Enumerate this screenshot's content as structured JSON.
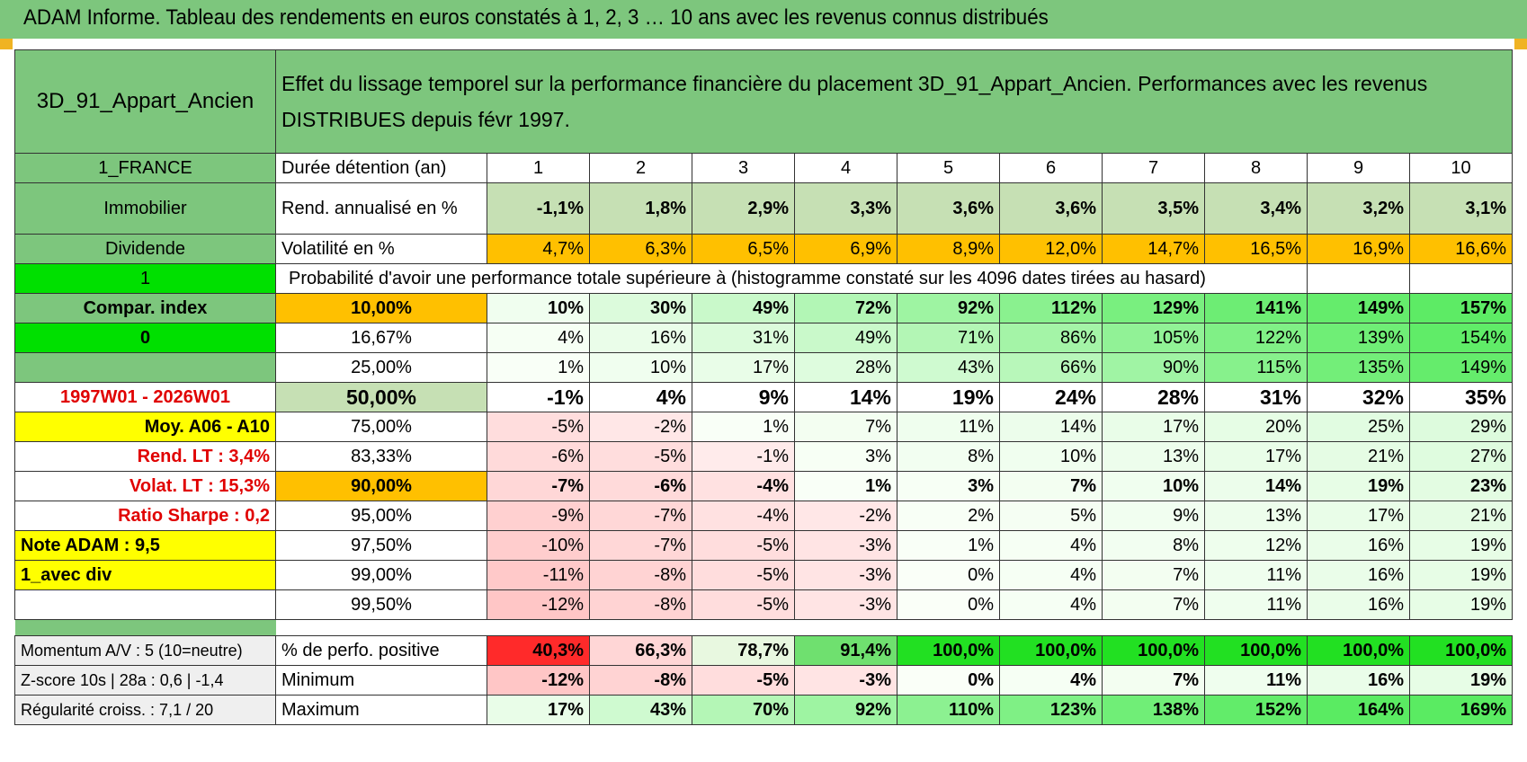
{
  "banner": "ADAM Informe. Tableau des rendements en euros constatés à 1, 2, 3 … 10 ans avec les revenus connus distribués",
  "colors": {
    "green": "#7dc67d",
    "orange": "#ffc000",
    "bright_green": "#00e000",
    "yellow": "#ffff00",
    "red_text": "#e00000"
  },
  "asset": "3D_91_Appart_Ancien",
  "description": "Effet du lissage temporel sur la performance financière du placement 3D_91_Appart_Ancien. Performances avec les revenus DISTRIBUES depuis févr 1997.",
  "side": {
    "country": "1_FRANCE",
    "category": "Immobilier",
    "income": "Dividende",
    "flag1": "1",
    "compar": "Compar. index",
    "flag0": "0",
    "period": "1997W01 - 2026W01",
    "moy": "Moy. A06 - A10",
    "rend_lt": "Rend. LT :   3,4%",
    "volat_lt": "Volat. LT :   15,3%",
    "sharpe": "Ratio Sharpe :    0,2",
    "note": "Note ADAM : 9,5",
    "avec_div": "1_avec div"
  },
  "header": {
    "label": "Durée détention (an)",
    "years": [
      "1",
      "2",
      "3",
      "4",
      "5",
      "6",
      "7",
      "8",
      "9",
      "10"
    ]
  },
  "rend": {
    "label": "Rend. annualisé en %",
    "values": [
      "-1,1%",
      "1,8%",
      "2,9%",
      "3,3%",
      "3,6%",
      "3,6%",
      "3,5%",
      "3,4%",
      "3,2%",
      "3,1%"
    ]
  },
  "vol": {
    "label": "Volatilité en %",
    "values": [
      "4,7%",
      "6,3%",
      "6,5%",
      "6,9%",
      "8,9%",
      "12,0%",
      "14,7%",
      "16,5%",
      "16,9%",
      "16,6%"
    ]
  },
  "prob_title": "Probabilité d'avoir une performance totale supérieure à (histogramme constaté sur les 4096 dates tirées au hasard)",
  "percentiles": [
    {
      "label": "10,00%",
      "values": [
        "10%",
        "30%",
        "49%",
        "72%",
        "92%",
        "112%",
        "129%",
        "141%",
        "149%",
        "157%"
      ]
    },
    {
      "label": "16,67%",
      "values": [
        "4%",
        "16%",
        "31%",
        "49%",
        "71%",
        "86%",
        "105%",
        "122%",
        "139%",
        "154%"
      ]
    },
    {
      "label": "25,00%",
      "values": [
        "1%",
        "10%",
        "17%",
        "28%",
        "43%",
        "66%",
        "90%",
        "115%",
        "135%",
        "149%"
      ]
    },
    {
      "label": "50,00%",
      "values": [
        "-1%",
        "4%",
        "9%",
        "14%",
        "19%",
        "24%",
        "28%",
        "31%",
        "32%",
        "35%"
      ]
    },
    {
      "label": "75,00%",
      "values": [
        "-5%",
        "-2%",
        "1%",
        "7%",
        "11%",
        "14%",
        "17%",
        "20%",
        "25%",
        "29%"
      ]
    },
    {
      "label": "83,33%",
      "values": [
        "-6%",
        "-5%",
        "-1%",
        "3%",
        "8%",
        "10%",
        "13%",
        "17%",
        "21%",
        "27%"
      ]
    },
    {
      "label": "90,00%",
      "values": [
        "-7%",
        "-6%",
        "-4%",
        "1%",
        "3%",
        "7%",
        "10%",
        "14%",
        "19%",
        "23%"
      ]
    },
    {
      "label": "95,00%",
      "values": [
        "-9%",
        "-7%",
        "-4%",
        "-2%",
        "2%",
        "5%",
        "9%",
        "13%",
        "17%",
        "21%"
      ]
    },
    {
      "label": "97,50%",
      "values": [
        "-10%",
        "-7%",
        "-5%",
        "-3%",
        "1%",
        "4%",
        "8%",
        "12%",
        "16%",
        "19%"
      ]
    },
    {
      "label": "99,00%",
      "values": [
        "-11%",
        "-8%",
        "-5%",
        "-3%",
        "0%",
        "4%",
        "7%",
        "11%",
        "16%",
        "19%"
      ]
    },
    {
      "label": "99,50%",
      "values": [
        "-12%",
        "-8%",
        "-5%",
        "-3%",
        "0%",
        "4%",
        "7%",
        "11%",
        "16%",
        "19%"
      ]
    }
  ],
  "bottom": [
    {
      "side": "Momentum A/V : 5 (10=neutre)",
      "label": "% de perfo. positive",
      "values": [
        "40,3%",
        "66,3%",
        "78,7%",
        "91,4%",
        "100,0%",
        "100,0%",
        "100,0%",
        "100,0%",
        "100,0%",
        "100,0%"
      ]
    },
    {
      "side": "Z-score 10s | 28a : 0,6 | -1,4",
      "label": "Minimum",
      "values": [
        "-12%",
        "-8%",
        "-5%",
        "-3%",
        "0%",
        "4%",
        "7%",
        "11%",
        "16%",
        "19%"
      ]
    },
    {
      "side": "Régularité croiss. : 7,1 / 20",
      "label": "Maximum",
      "values": [
        "17%",
        "43%",
        "70%",
        "92%",
        "110%",
        "123%",
        "138%",
        "152%",
        "164%",
        "169%"
      ]
    }
  ]
}
